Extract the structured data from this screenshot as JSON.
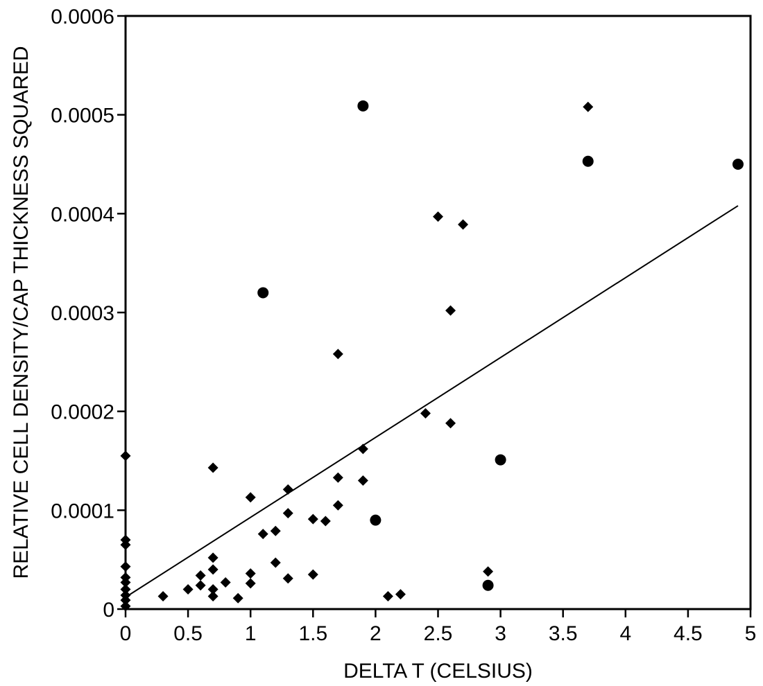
{
  "chart_data": {
    "type": "scatter",
    "title": "",
    "xlabel": "DELTA T (CELSIUS)",
    "ylabel": "RELATIVE CELL DENSITY/CAP THICKNESS SQUARED",
    "xlim": [
      0,
      5
    ],
    "ylim": [
      0,
      0.0006
    ],
    "x_ticks": [
      0,
      0.5,
      1,
      1.5,
      2,
      2.5,
      3,
      3.5,
      4,
      4.5,
      5
    ],
    "x_tick_labels": [
      "0",
      "0.5",
      "1",
      "1.5",
      "2",
      "2.5",
      "3",
      "3.5",
      "4",
      "4.5",
      "5"
    ],
    "y_ticks": [
      0,
      0.0001,
      0.0002,
      0.0003,
      0.0004,
      0.0005,
      0.0006
    ],
    "y_tick_labels": [
      "0",
      "0.0001",
      "0.0002",
      "0.0003",
      "0.0004",
      "0.0005",
      "0.0006"
    ],
    "grid": false,
    "legend": "none",
    "colors": {
      "marker": "#000000",
      "line": "#000000",
      "frame": "#000000"
    },
    "series": [
      {
        "marker": "diamond",
        "points": [
          [
            0,
            0.000155
          ],
          [
            0,
            7e-05
          ],
          [
            0,
            6.5e-05
          ],
          [
            0,
            4.3e-05
          ],
          [
            0,
            3.2e-05
          ],
          [
            0,
            2.7e-05
          ],
          [
            0,
            2e-05
          ],
          [
            0,
            1.4e-05
          ],
          [
            0,
            9e-06
          ],
          [
            0,
            3e-06
          ],
          [
            0.3,
            1.3e-05
          ],
          [
            0.5,
            2e-05
          ],
          [
            0.6,
            3.4e-05
          ],
          [
            0.6,
            2.4e-05
          ],
          [
            0.7,
            0.000143
          ],
          [
            0.7,
            5.2e-05
          ],
          [
            0.7,
            4e-05
          ],
          [
            0.7,
            2e-05
          ],
          [
            0.7,
            1.3e-05
          ],
          [
            0.8,
            2.7e-05
          ],
          [
            0.9,
            1.1e-05
          ],
          [
            1.0,
            0.000113
          ],
          [
            1.0,
            3.6e-05
          ],
          [
            1.0,
            2.6e-05
          ],
          [
            1.1,
            7.6e-05
          ],
          [
            1.2,
            7.9e-05
          ],
          [
            1.2,
            4.7e-05
          ],
          [
            1.3,
            0.000121
          ],
          [
            1.3,
            9.7e-05
          ],
          [
            1.3,
            3.1e-05
          ],
          [
            1.5,
            9.1e-05
          ],
          [
            1.5,
            3.5e-05
          ],
          [
            1.6,
            8.9e-05
          ],
          [
            1.7,
            0.000258
          ],
          [
            1.7,
            0.000133
          ],
          [
            1.7,
            0.000105
          ],
          [
            1.9,
            0.000162
          ],
          [
            1.9,
            0.00013
          ],
          [
            2.1,
            1.3e-05
          ],
          [
            2.2,
            1.5e-05
          ],
          [
            2.4,
            0.000198
          ],
          [
            2.5,
            0.000397
          ],
          [
            2.6,
            0.000302
          ],
          [
            2.6,
            0.000188
          ],
          [
            2.7,
            0.000389
          ],
          [
            2.9,
            3.8e-05
          ],
          [
            3.7,
            0.000508
          ]
        ]
      },
      {
        "marker": "circle",
        "points": [
          [
            1.1,
            0.00032
          ],
          [
            1.9,
            0.000509
          ],
          [
            2.0,
            9e-05
          ],
          [
            2.9,
            2.4e-05
          ],
          [
            3.0,
            0.000151
          ],
          [
            3.7,
            0.000453
          ],
          [
            4.9,
            0.00045
          ]
        ]
      }
    ],
    "trendline": {
      "x": [
        0,
        4.9
      ],
      "y": [
        1.2e-05,
        0.000408
      ]
    }
  }
}
